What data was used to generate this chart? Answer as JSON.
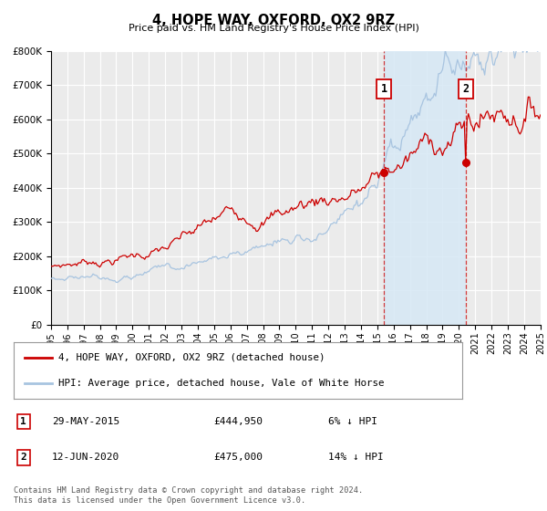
{
  "title": "4, HOPE WAY, OXFORD, OX2 9RZ",
  "subtitle": "Price paid vs. HM Land Registry's House Price Index (HPI)",
  "legend_line1": "4, HOPE WAY, OXFORD, OX2 9RZ (detached house)",
  "legend_line2": "HPI: Average price, detached house, Vale of White Horse",
  "annotation1_date": "29-MAY-2015",
  "annotation1_price": "£444,950",
  "annotation1_pct": "6% ↓ HPI",
  "annotation2_date": "12-JUN-2020",
  "annotation2_price": "£475,000",
  "annotation2_pct": "14% ↓ HPI",
  "footer": "Contains HM Land Registry data © Crown copyright and database right 2024.\nThis data is licensed under the Open Government Licence v3.0.",
  "hpi_color": "#a8c4e0",
  "hpi_fill_color": "#d6e8f5",
  "price_color": "#cc0000",
  "sale1_x": 2015.41,
  "sale1_y": 444950,
  "sale2_x": 2020.44,
  "sale2_y": 475000,
  "vline1_x": 2015.41,
  "vline2_x": 2020.44,
  "ylim": [
    0,
    800000
  ],
  "xlim": [
    1995,
    2025
  ],
  "yticks": [
    0,
    100000,
    200000,
    300000,
    400000,
    500000,
    600000,
    700000,
    800000
  ],
  "ytick_labels": [
    "£0",
    "£100K",
    "£200K",
    "£300K",
    "£400K",
    "£500K",
    "£600K",
    "£700K",
    "£800K"
  ],
  "xticks": [
    1995,
    1996,
    1997,
    1998,
    1999,
    2000,
    2001,
    2002,
    2003,
    2004,
    2005,
    2006,
    2007,
    2008,
    2009,
    2010,
    2011,
    2012,
    2013,
    2014,
    2015,
    2016,
    2017,
    2018,
    2019,
    2020,
    2021,
    2022,
    2023,
    2024,
    2025
  ],
  "background_color": "#ffffff",
  "plot_bg_color": "#ebebeb",
  "grid_color": "#ffffff"
}
